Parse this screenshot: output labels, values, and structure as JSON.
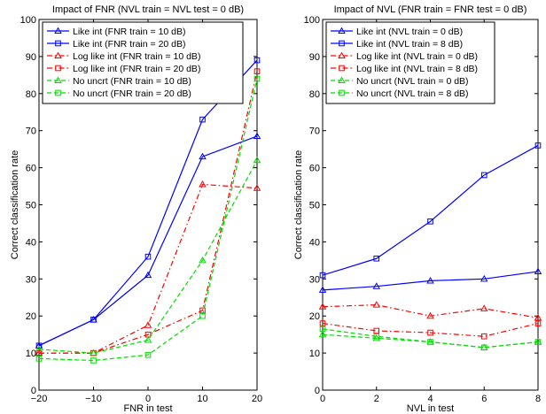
{
  "chart_data": [
    {
      "type": "line",
      "title": "Impact of FNR (NVL train = NVL test = 0 dB)",
      "xlabel": "FNR in test",
      "ylabel": "Correct classification rate",
      "xlim": [
        -20,
        20
      ],
      "ylim": [
        0,
        100
      ],
      "xticks": [
        -20,
        -10,
        0,
        10,
        20
      ],
      "xtick_labels": [
        "−20",
        "−10",
        "0",
        "10",
        "20"
      ],
      "yticks": [
        0,
        10,
        20,
        30,
        40,
        50,
        60,
        70,
        80,
        90,
        100
      ],
      "ytick_labels": [
        "0",
        "10",
        "20",
        "30",
        "40",
        "50",
        "60",
        "70",
        "80",
        "90",
        "100"
      ],
      "grid": false,
      "legend_position": "top-left",
      "x": [
        -20,
        -10,
        0,
        10,
        20
      ],
      "series": [
        {
          "name": "Like int (FNR train = 10 dB)",
          "values": [
            12,
            19,
            31,
            63,
            68.5
          ],
          "color": "#0000ff",
          "dash": "solid",
          "marker": "triangle"
        },
        {
          "name": "Like int (FNR train = 20 dB)",
          "values": [
            12,
            19,
            36,
            73,
            89
          ],
          "color": "#0000ff",
          "dash": "solid",
          "marker": "square"
        },
        {
          "name": "Log like int (FNR train = 10 dB)",
          "values": [
            10,
            10,
            17.5,
            55.5,
            54.5
          ],
          "color": "#ff0000",
          "dash": "dashdot",
          "marker": "triangle"
        },
        {
          "name": "Log like int (FNR train = 20 dB)",
          "values": [
            10,
            10,
            15,
            21.5,
            86
          ],
          "color": "#ff0000",
          "dash": "dashdot",
          "marker": "square"
        },
        {
          "name": "No uncrt (FNR train = 10 dB)",
          "values": [
            11,
            10,
            13.5,
            35,
            62
          ],
          "color": "#00dd00",
          "dash": "dashed",
          "marker": "triangle"
        },
        {
          "name": "No uncrt (FNR train = 20 dB)",
          "values": [
            8.5,
            8,
            9.5,
            20,
            84
          ],
          "color": "#00dd00",
          "dash": "dashed",
          "marker": "square"
        }
      ]
    },
    {
      "type": "line",
      "title": "Impact of NVL (FNR train = FNR test = 0 dB)",
      "xlabel": "NVL in test",
      "ylabel": "Correct classification rate",
      "xlim": [
        0,
        8
      ],
      "ylim": [
        0,
        100
      ],
      "xticks": [
        0,
        2,
        4,
        6,
        8
      ],
      "xtick_labels": [
        "0",
        "2",
        "4",
        "6",
        "8"
      ],
      "yticks": [
        0,
        10,
        20,
        30,
        40,
        50,
        60,
        70,
        80,
        90,
        100
      ],
      "ytick_labels": [
        "0",
        "10",
        "20",
        "30",
        "40",
        "50",
        "60",
        "70",
        "80",
        "90",
        "100"
      ],
      "grid": false,
      "legend_position": "top-left",
      "x": [
        0,
        2,
        4,
        6,
        8
      ],
      "series": [
        {
          "name": "Like int (NVL train = 0 dB)",
          "values": [
            27,
            28,
            29.5,
            30,
            32
          ],
          "color": "#0000ff",
          "dash": "solid",
          "marker": "triangle"
        },
        {
          "name": "Like int (NVL train = 8 dB)",
          "values": [
            31,
            35.5,
            45.5,
            58,
            66
          ],
          "color": "#0000ff",
          "dash": "solid",
          "marker": "square"
        },
        {
          "name": "Log like int (NVL train = 0 dB)",
          "values": [
            22.5,
            23,
            20,
            22,
            19.5
          ],
          "color": "#ff0000",
          "dash": "dashdot",
          "marker": "triangle"
        },
        {
          "name": "Log like int (NVL train = 8 dB)",
          "values": [
            18,
            16,
            15.5,
            14.5,
            18
          ],
          "color": "#ff0000",
          "dash": "dashdot",
          "marker": "square"
        },
        {
          "name": "No uncrt (NVL train = 0 dB)",
          "values": [
            15,
            14,
            13,
            11.5,
            13
          ],
          "color": "#00dd00",
          "dash": "dashed",
          "marker": "triangle"
        },
        {
          "name": "No uncrt (NVL train = 8 dB)",
          "values": [
            16.5,
            14.5,
            13,
            11.5,
            13
          ],
          "color": "#00dd00",
          "dash": "dashed",
          "marker": "square"
        }
      ]
    }
  ]
}
